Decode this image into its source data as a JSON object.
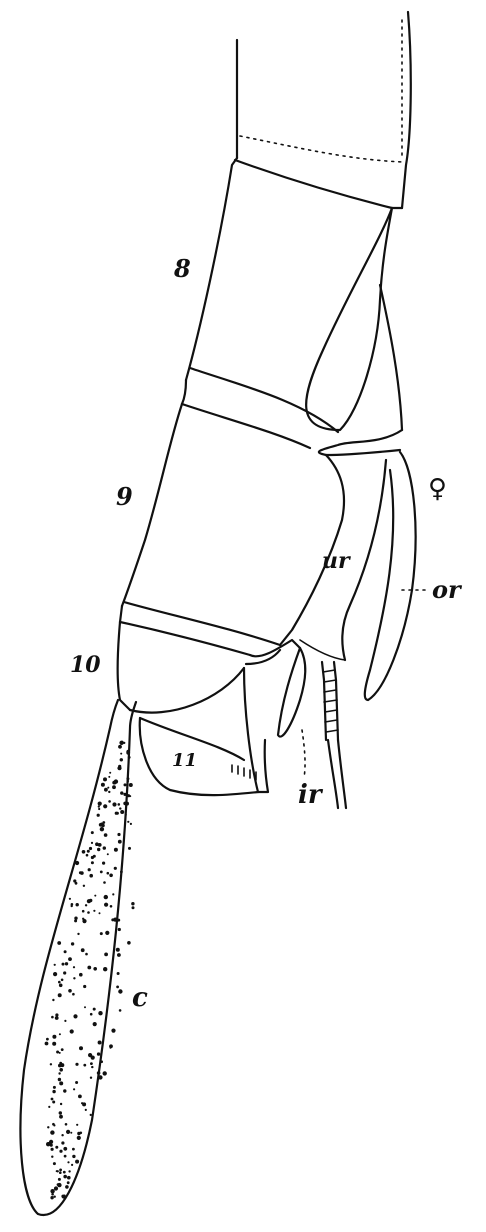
{
  "figure": {
    "labels": {
      "segment_8": "8",
      "segment_9": "9",
      "segment_10": "10",
      "segment_11": "11",
      "female_symbol": "♀",
      "upper_ramus": "ur",
      "outer_ramus": "or",
      "inner_ramus": "ir",
      "cercus": "c"
    }
  }
}
